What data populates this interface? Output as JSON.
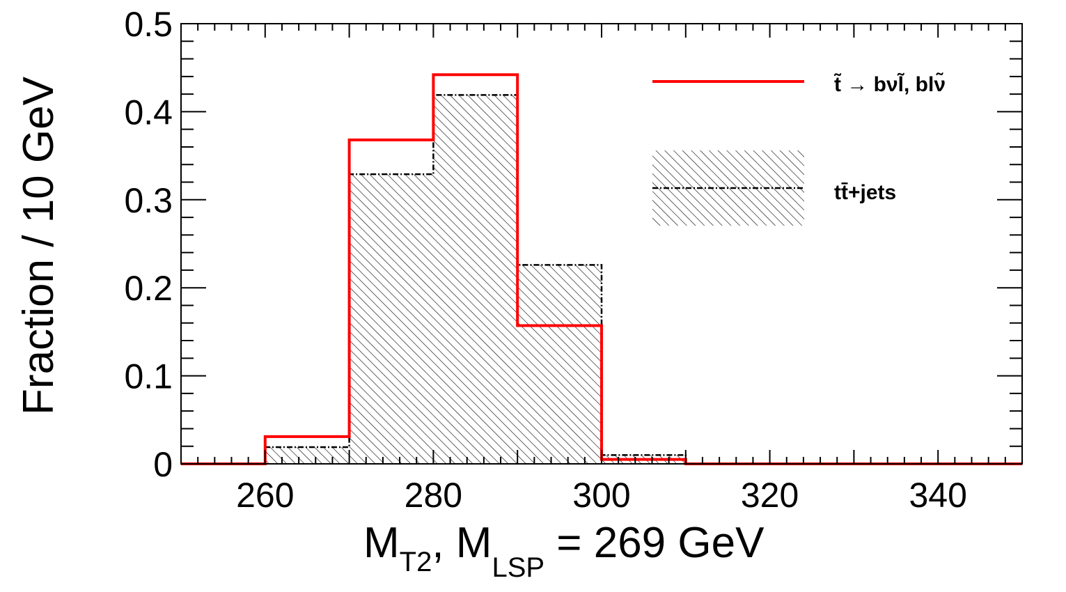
{
  "chart_data": {
    "type": "histogram",
    "xlabel": {
      "main": "M",
      "sub1": "T2",
      "mid": ", M",
      "sub2": "LSP",
      "rest": " = 269 GeV"
    },
    "ylabel": "Fraction / 10 GeV",
    "xlim": [
      250,
      350
    ],
    "ylim": [
      0,
      0.5
    ],
    "x_ticks": [
      260,
      280,
      300,
      320,
      340
    ],
    "y_ticks": [
      {
        "value": 0,
        "label": "0"
      },
      {
        "value": 0.1,
        "label": "0.1"
      },
      {
        "value": 0.2,
        "label": "0.2"
      },
      {
        "value": 0.3,
        "label": "0.3"
      },
      {
        "value": 0.4,
        "label": "0.4"
      },
      {
        "value": 0.5,
        "label": "0.5"
      }
    ],
    "bin_edges": [
      250,
      260,
      270,
      280,
      290,
      300,
      310,
      320,
      330,
      340,
      350
    ],
    "series": [
      {
        "name": "t̃ → bνl̃, blν̃",
        "style": "red-solid-line",
        "color": "#ff0000",
        "values": [
          0,
          0.031,
          0.368,
          0.442,
          0.157,
          0.005,
          0,
          0,
          0,
          0
        ]
      },
      {
        "name": "tt̄+jets",
        "style": "hatched-dotted",
        "color": "#000000",
        "values": [
          0,
          0.019,
          0.329,
          0.419,
          0.226,
          0.01,
          0,
          0,
          0,
          0
        ]
      }
    ],
    "legend": {
      "placement": "top-right",
      "signal_label": "t̃ → bνl̃, blν̃",
      "background_label": "tt̄+jets"
    }
  }
}
